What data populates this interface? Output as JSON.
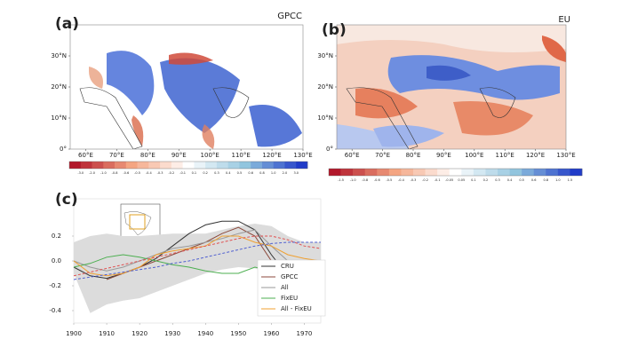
{
  "chart_data": [
    {
      "type": "map",
      "panel_label": "(a)",
      "title": "GPCC",
      "xlim": [
        55,
        130
      ],
      "ylim": [
        0,
        40
      ],
      "xticks": [
        {
          "value": 60,
          "label": "60°E"
        },
        {
          "value": 70,
          "label": "70°E"
        },
        {
          "value": 80,
          "label": "80°E"
        },
        {
          "value": 90,
          "label": "90°E"
        },
        {
          "value": 100,
          "label": "100°E"
        },
        {
          "value": 110,
          "label": "110°E"
        },
        {
          "value": 120,
          "label": "120°E"
        },
        {
          "value": 130,
          "label": "130°E"
        }
      ],
      "yticks": [
        {
          "value": 0,
          "label": "0°"
        },
        {
          "value": 10,
          "label": "10°N"
        },
        {
          "value": 20,
          "label": "20°N"
        },
        {
          "value": 30,
          "label": "30°N"
        }
      ],
      "colorbar_labels": [
        "-3.0",
        "-2.0",
        "-1.0",
        "-0.8",
        "-0.6",
        "-0.5",
        "-0.4",
        "-0.3",
        "-0.2",
        "-0.1",
        "0.1",
        "0.2",
        "0.3",
        "0.4",
        "0.5",
        "0.6",
        "0.8",
        "1.0",
        "2.0",
        "3.0"
      ]
    },
    {
      "type": "map",
      "panel_label": "(b)",
      "title": "EU",
      "xlim": [
        55,
        130
      ],
      "ylim": [
        0,
        40
      ],
      "xticks": [
        {
          "value": 60,
          "label": "60°E"
        },
        {
          "value": 70,
          "label": "70°E"
        },
        {
          "value": 80,
          "label": "80°E"
        },
        {
          "value": 90,
          "label": "90°E"
        },
        {
          "value": 100,
          "label": "100°E"
        },
        {
          "value": 110,
          "label": "110°E"
        },
        {
          "value": 120,
          "label": "120°E"
        },
        {
          "value": 130,
          "label": "130°E"
        }
      ],
      "yticks": [
        {
          "value": 0,
          "label": "0°"
        },
        {
          "value": 10,
          "label": "10°N"
        },
        {
          "value": 20,
          "label": "20°N"
        },
        {
          "value": 30,
          "label": "30°N"
        }
      ],
      "colorbar_labels": [
        "-1.5",
        "-1.0",
        "-0.8",
        "-0.6",
        "-0.5",
        "-0.4",
        "-0.3",
        "-0.2",
        "-0.1",
        "-0.05",
        "0.05",
        "0.1",
        "0.2",
        "0.3",
        "0.4",
        "0.5",
        "0.6",
        "0.8",
        "1.0",
        "1.5"
      ]
    },
    {
      "type": "line",
      "panel_label": "(c)",
      "x": [
        1900,
        1905,
        1910,
        1915,
        1920,
        1925,
        1930,
        1935,
        1940,
        1945,
        1950,
        1955,
        1960,
        1965,
        1970,
        1975
      ],
      "xlim": [
        1900,
        1975
      ],
      "xticks": [
        1900,
        1910,
        1920,
        1930,
        1940,
        1950,
        1960,
        1970
      ],
      "ylim": [
        -0.5,
        0.5
      ],
      "yticks": [
        -0.4,
        -0.2,
        {
          "value": 0,
          "label": "0.0"
        },
        0.2
      ],
      "band": {
        "color": "#dcdcdc",
        "lower": [
          -0.1,
          -0.42,
          -0.35,
          -0.32,
          -0.3,
          -0.25,
          -0.2,
          -0.15,
          -0.1,
          -0.07,
          -0.05,
          -0.06,
          -0.1,
          -0.15,
          -0.2,
          -0.25
        ],
        "upper": [
          0.15,
          0.2,
          0.22,
          0.2,
          0.2,
          0.21,
          0.22,
          0.22,
          0.22,
          0.25,
          0.28,
          0.3,
          0.28,
          0.2,
          0.15,
          0.15
        ]
      },
      "series": [
        {
          "name": "CRU",
          "color": "#333333",
          "values": [
            -0.05,
            -0.12,
            -0.14,
            -0.1,
            -0.05,
            0.02,
            0.12,
            0.22,
            0.29,
            0.32,
            0.32,
            0.25,
            0.05,
            -0.12,
            -0.15,
            -0.15
          ]
        },
        {
          "name": "GPCC",
          "color": "#8c4a3c",
          "values": [
            null,
            null,
            -0.15,
            -0.1,
            -0.05,
            0.0,
            0.05,
            0.1,
            0.15,
            0.22,
            0.27,
            0.2,
            0.0,
            -0.1,
            -0.15,
            -0.17
          ]
        },
        {
          "name": "All",
          "color": "#999999",
          "values": [
            0.0,
            -0.05,
            -0.08,
            -0.05,
            0.0,
            0.05,
            0.1,
            0.12,
            0.15,
            0.18,
            0.22,
            0.25,
            0.12,
            0.0,
            -0.02,
            -0.03
          ]
        },
        {
          "name": "FixEU",
          "color": "#4caf50",
          "values": [
            -0.05,
            -0.02,
            0.03,
            0.05,
            0.03,
            0.0,
            -0.03,
            -0.05,
            -0.08,
            -0.1,
            -0.1,
            -0.05,
            -0.08,
            -0.1,
            -0.05,
            0.0
          ]
        },
        {
          "name": "All - FixEU",
          "color": "#f0a030",
          "values": [
            0.0,
            -0.1,
            -0.12,
            -0.1,
            -0.05,
            0.05,
            0.08,
            0.1,
            0.12,
            0.2,
            0.2,
            0.15,
            0.12,
            0.05,
            0.02,
            0.0
          ]
        },
        {
          "color": "#e05050",
          "dashed": true,
          "values": [
            -0.12,
            -0.09,
            -0.06,
            -0.03,
            0.0,
            0.03,
            0.06,
            0.09,
            0.12,
            0.15,
            0.18,
            0.2,
            0.2,
            0.17,
            0.12,
            0.1
          ]
        },
        {
          "color": "#5060d0",
          "dashed": true,
          "values": [
            -0.15,
            -0.13,
            -0.11,
            -0.09,
            -0.07,
            -0.05,
            -0.02,
            0.0,
            0.03,
            0.06,
            0.09,
            0.12,
            0.14,
            0.15,
            0.15,
            0.15
          ]
        }
      ]
    }
  ]
}
